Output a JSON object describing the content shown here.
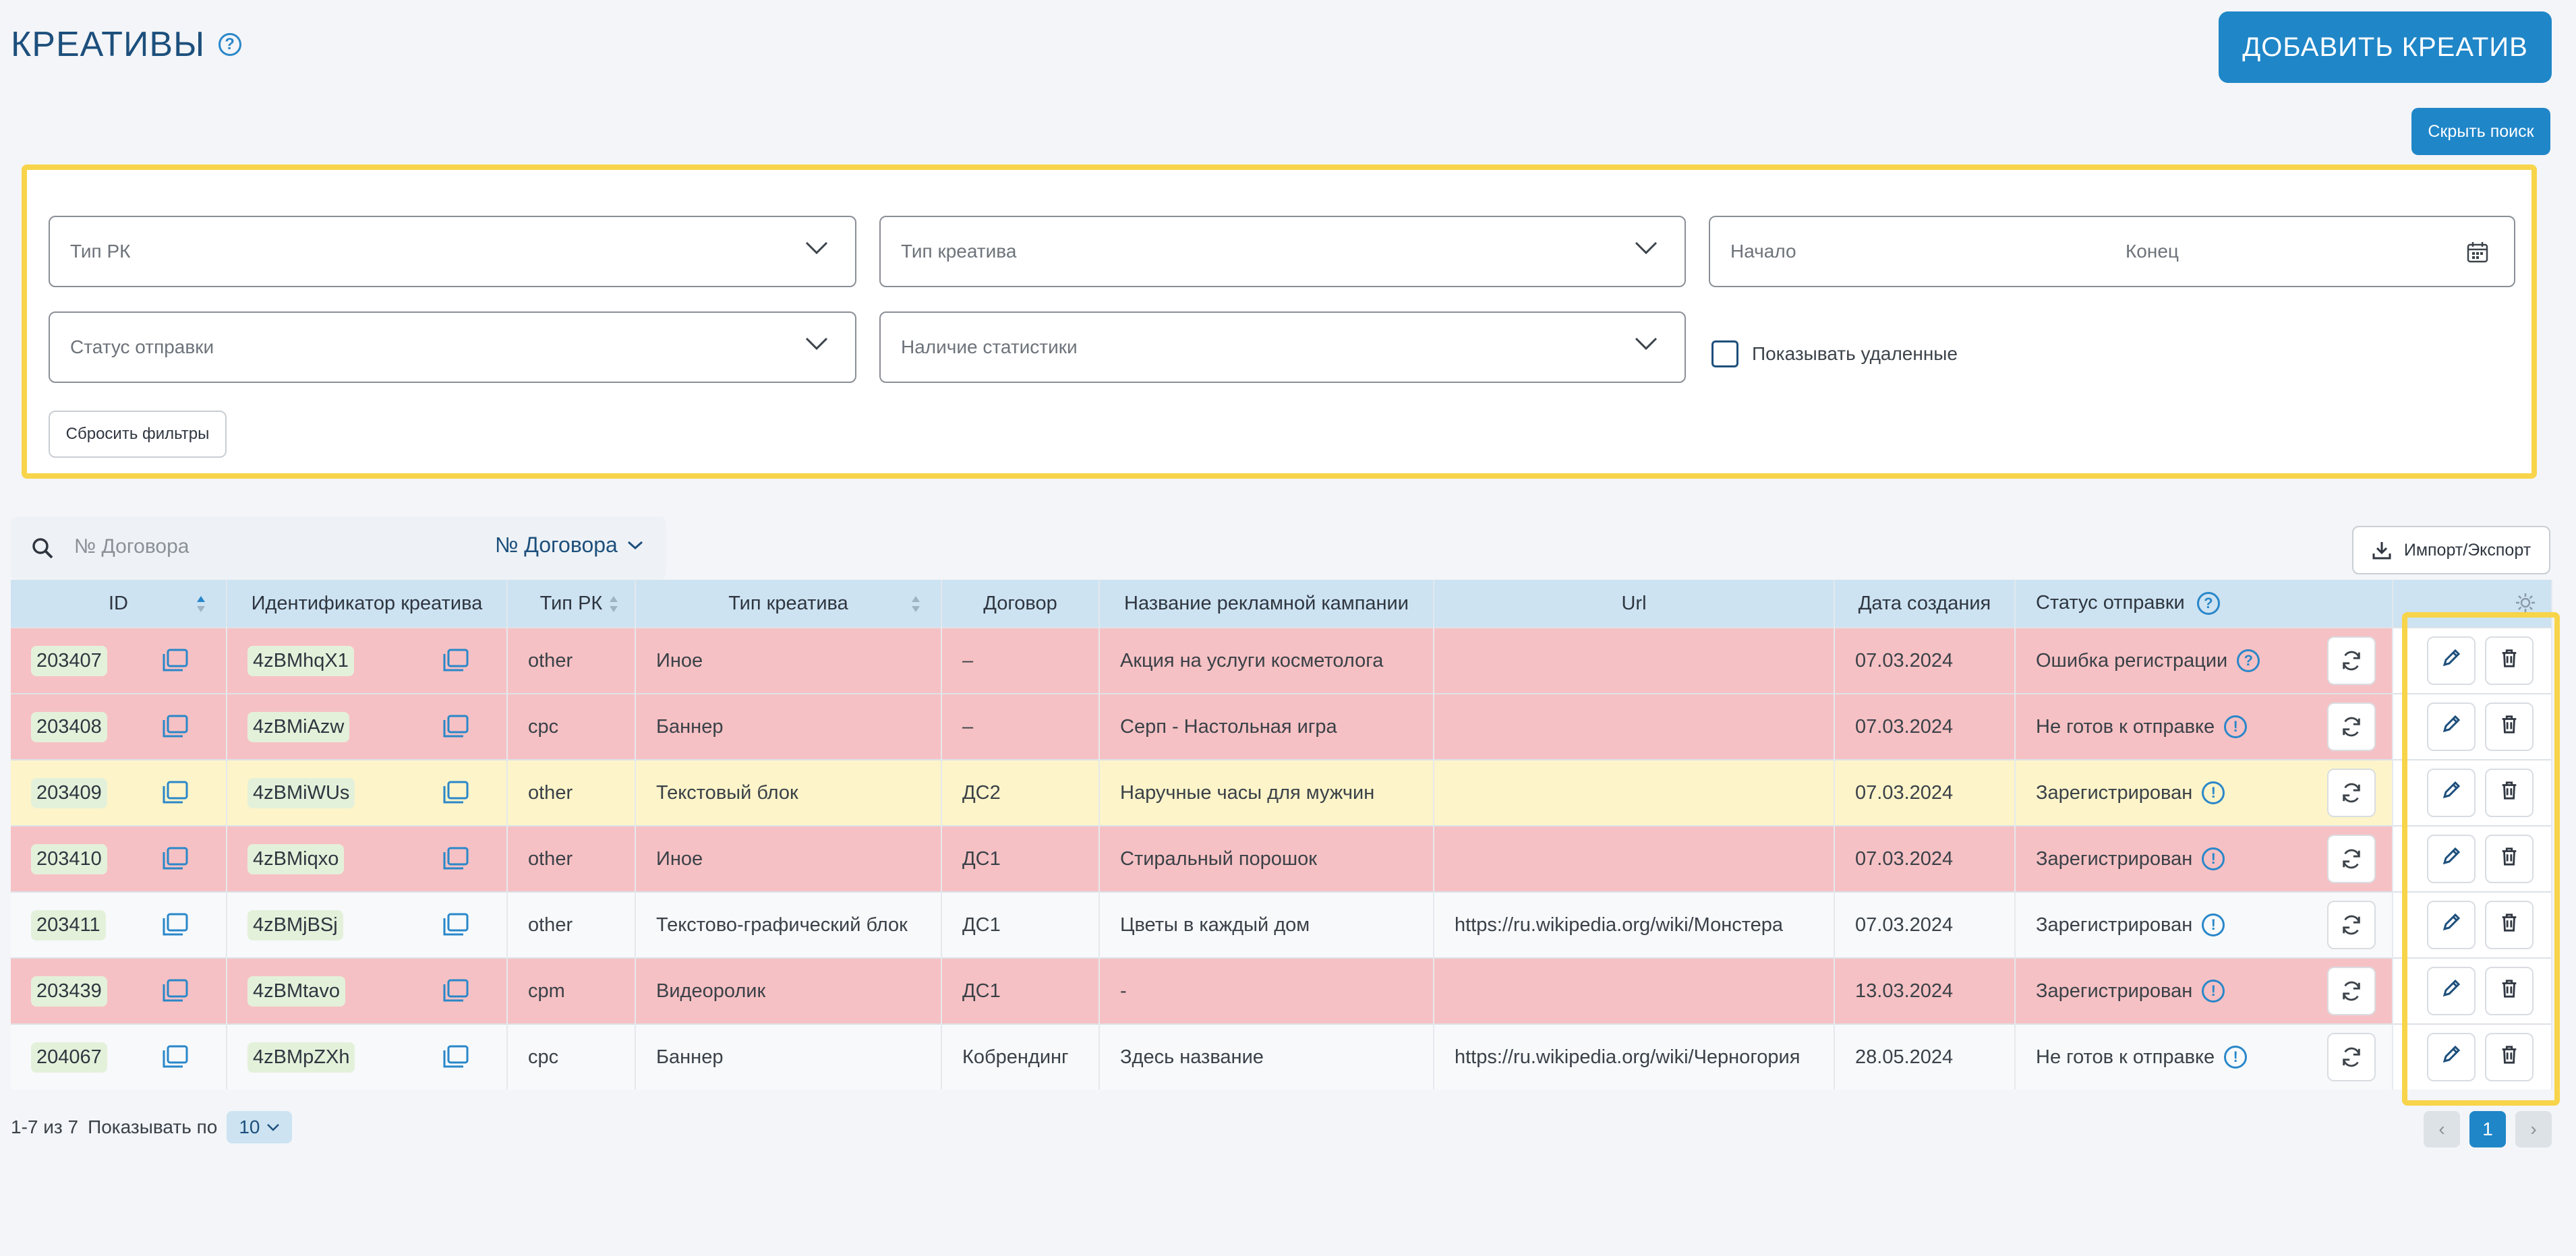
{
  "header": {
    "title": "КРЕАТИВЫ",
    "help_icon": "?",
    "add_button": "ДОБАВИТЬ КРЕАТИВ",
    "hide_search_button": "Скрыть поиск"
  },
  "filters": {
    "campaign_type_placeholder": "Тип РК",
    "creative_type_placeholder": "Тип креатива",
    "date_start_placeholder": "Начало",
    "date_end_placeholder": "Конец",
    "send_status_placeholder": "Статус отправки",
    "stats_placeholder": "Наличие статистики",
    "show_deleted_label": "Показывать удаленные",
    "reset_button": "Сбросить фильтры"
  },
  "search": {
    "placeholder": "№ Договора",
    "mode_label": "№ Договора"
  },
  "import_export_button": "Импорт/Экспорт",
  "table": {
    "columns": [
      "ID",
      "Идентификатор креатива",
      "Тип РК",
      "Тип креатива",
      "Договор",
      "Название рекламной кампании",
      "Url",
      "Дата создания",
      "Статус отправки"
    ],
    "rows": [
      {
        "id": "203407",
        "creative_id": "4zBMhqX1",
        "rk_type": "other",
        "creative_type": "Иное",
        "contract": "–",
        "campaign": "Акция на услуги косметолога",
        "url": "",
        "date": "07.03.2024",
        "status": "Ошибка регистрации",
        "status_icon": "?",
        "row_color": "red"
      },
      {
        "id": "203408",
        "creative_id": "4zBMiAzw",
        "rk_type": "cpc",
        "creative_type": "Баннер",
        "contract": "–",
        "campaign": "Серп - Настольная игра",
        "url": "",
        "date": "07.03.2024",
        "status": "Не готов к отправке",
        "status_icon": "!",
        "row_color": "red"
      },
      {
        "id": "203409",
        "creative_id": "4zBMiWUs",
        "rk_type": "other",
        "creative_type": "Текстовый блок",
        "contract": "ДС2",
        "campaign": "Наручные часы для мужчин",
        "url": "",
        "date": "07.03.2024",
        "status": "Зарегистрирован",
        "status_icon": "!",
        "row_color": "yellow"
      },
      {
        "id": "203410",
        "creative_id": "4zBMiqxo",
        "rk_type": "other",
        "creative_type": "Иное",
        "contract": "ДС1",
        "campaign": "Стиральный порошок",
        "url": "",
        "date": "07.03.2024",
        "status": "Зарегистрирован",
        "status_icon": "!",
        "row_color": "red"
      },
      {
        "id": "203411",
        "creative_id": "4zBMjBSj",
        "rk_type": "other",
        "creative_type": "Текстово-графический блок",
        "contract": "ДС1",
        "campaign": "Цветы в каждый дом",
        "url": "https://ru.wikipedia.org/wiki/Монстера",
        "date": "07.03.2024",
        "status": "Зарегистрирован",
        "status_icon": "!",
        "row_color": "white"
      },
      {
        "id": "203439",
        "creative_id": "4zBMtavo",
        "rk_type": "cpm",
        "creative_type": "Видеоролик",
        "contract": "ДС1",
        "campaign": "-",
        "url": "",
        "date": "13.03.2024",
        "status": "Зарегистрирован",
        "status_icon": "!",
        "row_color": "red"
      },
      {
        "id": "204067",
        "creative_id": "4zBMpZXh",
        "rk_type": "cpc",
        "creative_type": "Баннер",
        "contract": "Кобрендинг",
        "campaign": "Здесь название",
        "url": "https://ru.wikipedia.org/wiki/Черногория",
        "date": "28.05.2024",
        "status": "Не готов к отправке",
        "status_icon": "!",
        "row_color": "white"
      }
    ]
  },
  "pagination": {
    "range": "1-7 из 7",
    "show_label": "Показывать по",
    "per_page": "10",
    "current_page": "1"
  },
  "colors": {
    "accent": "#1f86c8",
    "title": "#1d4f7c",
    "row_red": "#f6c1c4",
    "row_yellow": "#fdf4c9",
    "highlight": "#f7d44a"
  }
}
